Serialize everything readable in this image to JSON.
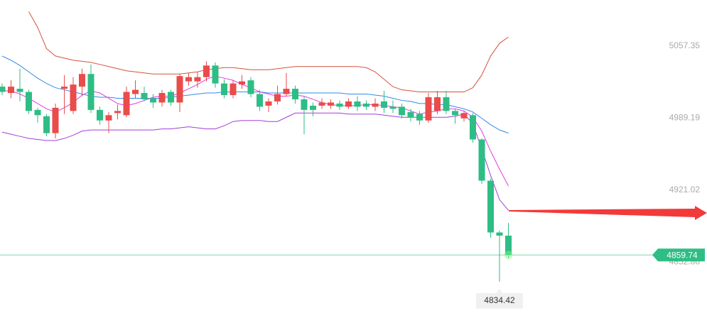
{
  "chart_data": {
    "type": "candlestick",
    "ylim": [
      4804.8,
      5101.0
    ],
    "yticks": [
      5057.35,
      4989.19,
      4921.02,
      4852.86
    ],
    "up_color": "#ea4b4b",
    "down_color": "#2ebd85",
    "open": [
      5019,
      5013,
      5017,
      5014,
      4997,
      4991,
      4975,
      5017,
      4996,
      5019,
      5031,
      4997,
      4987,
      4994,
      4992,
      5012,
      5013,
      5008,
      5004,
      5014,
      5004,
      5024,
      5024,
      5028,
      5039,
      5022,
      5011,
      5021,
      5025,
      5012,
      5001,
      5005,
      5012,
      5017,
      5007,
      5001,
      5001,
      5001,
      5003,
      5000,
      5005,
      5003,
      5000,
      5005,
      5000,
      5000,
      4995,
      4993,
      4987,
      4996,
      5009,
      4996,
      4989,
      4992,
      4969,
      4930,
      4881,
      4878
    ],
    "high": [
      5022,
      5025,
      5036,
      5016,
      4999,
      4993,
      5003,
      5030,
      5028,
      5036,
      5040,
      5000,
      4995,
      5002,
      5019,
      5025,
      5019,
      5012,
      5016,
      5016,
      5031,
      5032,
      5033,
      5043,
      5042,
      5026,
      5025,
      5030,
      5028,
      5016,
      5008,
      5020,
      5032,
      5020,
      5010,
      5004,
      5008,
      5007,
      5006,
      5008,
      5010,
      5006,
      5008,
      5015,
      5006,
      5003,
      4998,
      4996,
      5013,
      5015,
      5015,
      4998,
      4996,
      4994,
      4970,
      4932,
      4883,
      4890
    ],
    "low": [
      5011,
      5008,
      5005,
      4993,
      4985,
      4972,
      4970,
      4993,
      4993,
      5010,
      4994,
      4983,
      4975,
      4988,
      4990,
      5008,
      5005,
      4999,
      5000,
      5001,
      4995,
      5020,
      5018,
      5024,
      5018,
      5008,
      5008,
      5017,
      5009,
      4996,
      4995,
      5002,
      5010,
      5003,
      4974,
      4991,
      4998,
      4998,
      4997,
      4998,
      4996,
      4997,
      4996,
      4994,
      4994,
      4989,
      4986,
      4983,
      4985,
      4993,
      4993,
      4984,
      4986,
      4966,
      4927,
      4876,
      4834.42,
      4857
    ],
    "close": [
      5014,
      5019,
      5014,
      4996,
      4992,
      4975,
      4999,
      5019,
      5021,
      5031,
      4997,
      4987,
      4992,
      4996,
      5014,
      5016,
      5007,
      5004,
      5013,
      5004,
      5029,
      5028,
      5028,
      5039,
      5022,
      5011,
      5022,
      5024,
      5012,
      5000,
      5005,
      5012,
      5017,
      5007,
      4997,
      4997,
      5004,
      5004,
      5000,
      5005,
      5000,
      5000,
      5003,
      4999,
      4998,
      4992,
      4990,
      4987,
      5009,
      5009,
      4996,
      4992,
      4994,
      4969,
      4930,
      4881,
      4878,
      4859.74
    ],
    "overlays": [
      {
        "color": "#d4533a",
        "values": [
          null,
          null,
          null,
          5090,
          5075,
          5055,
          5048,
          5046,
          5044,
          5043,
          5042,
          5040,
          5038,
          5036,
          5034,
          5033,
          5032,
          5031,
          5031,
          5031,
          5031,
          5032,
          5033,
          5035,
          5036,
          5037,
          5037,
          5036,
          5035,
          5035,
          5035,
          5036,
          5037,
          5038,
          5038,
          5038,
          5038,
          5038,
          5038,
          5038,
          5038,
          5037,
          5033,
          5026,
          5019,
          5016,
          5015,
          5014,
          5014,
          5014,
          5014,
          5014,
          5014,
          5018,
          5030,
          5048,
          5060,
          5066
        ]
      },
      {
        "color": "#2f8be6",
        "values": [
          5048,
          5044,
          5039,
          5033,
          5027,
          5022,
          5018,
          5016,
          5014,
          5012,
          5010,
          5009,
          5009,
          5008,
          5008,
          5008,
          5008,
          5008,
          5008,
          5009,
          5010,
          5011,
          5012,
          5013,
          5013,
          5014,
          5014,
          5014,
          5014,
          5014,
          5013,
          5013,
          5013,
          5013,
          5013,
          5013,
          5013,
          5013,
          5013,
          5012,
          5012,
          5012,
          5011,
          5010,
          5008,
          5006,
          5005,
          5003,
          5003,
          5002,
          5002,
          5000,
          4998,
          4995,
          4989,
          4983,
          4978,
          4975
        ]
      },
      {
        "color": "#a23fd8",
        "values": [
          4976,
          4974,
          4972,
          4970,
          4969,
          4968,
          4968,
          4970,
          4973,
          4977,
          4978,
          4978,
          4978,
          4978,
          4978,
          4978,
          4978,
          4978,
          4979,
          4979,
          4980,
          4981,
          4980,
          4979,
          4979,
          4982,
          4986,
          4987,
          4987,
          4987,
          4986,
          4986,
          4990,
          4994,
          4994,
          4994,
          4994,
          4994,
          4994,
          4993,
          4993,
          4993,
          4993,
          4992,
          4991,
          4990,
          4990,
          4990,
          4990,
          4990,
          4990,
          4991,
          4993,
          4984,
          4960,
          4935,
          4912,
          4902
        ]
      },
      {
        "color": "#e03ee0",
        "values": [
          5015,
          5015,
          5012,
          5008,
          5003,
          4998,
          4995,
          4999,
          5004,
          5011,
          5015,
          5013,
          5008,
          5003,
          5001,
          5003,
          5006,
          5009,
          5010,
          5010,
          5013,
          5017,
          5021,
          5026,
          5029,
          5027,
          5025,
          5021,
          5018,
          5014,
          5012,
          5010,
          5010,
          5011,
          5010,
          5007,
          5004,
          5002,
          5001,
          5001,
          5001,
          5002,
          5002,
          5001,
          5000,
          4999,
          4996,
          4993,
          4995,
          4996,
          4998,
          4998,
          4996,
          4990,
          4977,
          4958,
          4941,
          4925
        ]
      }
    ],
    "last_price": 4859.74,
    "low_label": 4834.42
  }
}
